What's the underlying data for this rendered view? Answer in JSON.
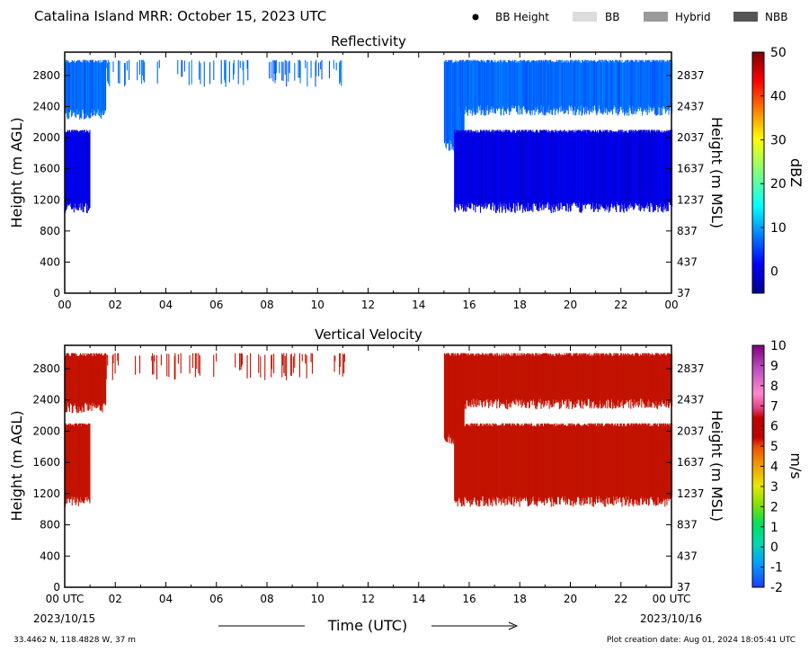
{
  "header": {
    "title": "Catalina Island MRR:  October 15, 2023 UTC",
    "legend": [
      {
        "label": "BB Height",
        "marker": "dot",
        "color": "#000000"
      },
      {
        "label": "BB",
        "marker": "box",
        "color": "#dcdcdc"
      },
      {
        "label": "Hybrid",
        "marker": "box",
        "color": "#9a9a9a"
      },
      {
        "label": "NBB",
        "marker": "box",
        "color": "#555555"
      }
    ]
  },
  "footer": {
    "location": "33.4462 N, 118.4828 W, 37 m",
    "creation": "Plot creation date: Aug 01, 2024 18:05:41 UTC",
    "xlabel": "Time (UTC)",
    "start_date": "2023/10/15",
    "end_date": "2023/10/16"
  },
  "chart_data": [
    {
      "type": "heatmap",
      "title": "Reflectivity",
      "ylabel": "Height (m AGL)",
      "ylabel_right": "Height (m MSL)",
      "x_ticks": [
        "00",
        "02",
        "04",
        "06",
        "08",
        "10",
        "12",
        "14",
        "16",
        "18",
        "20",
        "22",
        "00"
      ],
      "xlim": [
        0,
        24
      ],
      "y_ticks": [
        0,
        400,
        800,
        1200,
        1600,
        2000,
        2400,
        2800
      ],
      "y_ticks_right": [
        37,
        437,
        837,
        1237,
        1637,
        2037,
        2437,
        2837
      ],
      "ylim": [
        0,
        3100
      ],
      "colorbar": {
        "label": "dBZ",
        "min": -5,
        "max": 50,
        "ticks": [
          0,
          10,
          20,
          30,
          40,
          50
        ],
        "colormap": "jet"
      },
      "echo_regions": [
        {
          "t_start": 0.0,
          "t_end": 1.0,
          "h_bottom": 1100,
          "h_top": 2100,
          "value": 0
        },
        {
          "t_start": 0.0,
          "t_end": 1.6,
          "h_bottom": 2300,
          "h_top": 3000,
          "value": 4
        },
        {
          "t_start": 1.6,
          "t_end": 11.2,
          "h_bottom": 2650,
          "h_top": 3000,
          "value": 4,
          "sparse": true
        },
        {
          "t_start": 15.0,
          "t_end": 15.8,
          "h_bottom": 1900,
          "h_top": 3000,
          "value": 4
        },
        {
          "t_start": 15.4,
          "t_end": 24.0,
          "h_bottom": 1100,
          "h_top": 2100,
          "value": 0
        },
        {
          "t_start": 15.6,
          "t_end": 24.0,
          "h_bottom": 2350,
          "h_top": 3000,
          "value": 4
        }
      ]
    },
    {
      "type": "heatmap",
      "title": "Vertical Velocity",
      "ylabel": "Height (m AGL)",
      "ylabel_right": "Height (m MSL)",
      "x_ticks": [
        "00 UTC",
        "02",
        "04",
        "06",
        "08",
        "10",
        "12",
        "14",
        "16",
        "18",
        "20",
        "22",
        "00 UTC"
      ],
      "xlim": [
        0,
        24
      ],
      "y_ticks": [
        0,
        400,
        800,
        1200,
        1600,
        2000,
        2400,
        2800
      ],
      "y_ticks_right": [
        37,
        437,
        837,
        1237,
        1637,
        2037,
        2437,
        2837
      ],
      "ylim": [
        0,
        3100
      ],
      "colorbar": {
        "label": "m/s",
        "min": -2,
        "max": 10,
        "ticks": [
          -2,
          -1,
          0,
          1,
          2,
          3,
          4,
          5,
          6,
          7,
          8,
          9,
          10
        ],
        "colormap": "velocity"
      },
      "echo_regions": [
        {
          "t_start": 0.0,
          "t_end": 1.0,
          "h_bottom": 1100,
          "h_top": 2100,
          "value": 6
        },
        {
          "t_start": 0.0,
          "t_end": 1.6,
          "h_bottom": 2300,
          "h_top": 3000,
          "value": 6
        },
        {
          "t_start": 1.6,
          "t_end": 11.2,
          "h_bottom": 2650,
          "h_top": 3000,
          "value": 6,
          "sparse": true
        },
        {
          "t_start": 15.0,
          "t_end": 15.8,
          "h_bottom": 1900,
          "h_top": 3000,
          "value": 6
        },
        {
          "t_start": 15.4,
          "t_end": 24.0,
          "h_bottom": 1100,
          "h_top": 2100,
          "value": 6
        },
        {
          "t_start": 15.6,
          "t_end": 24.0,
          "h_bottom": 2350,
          "h_top": 3000,
          "value": 6
        }
      ]
    }
  ]
}
